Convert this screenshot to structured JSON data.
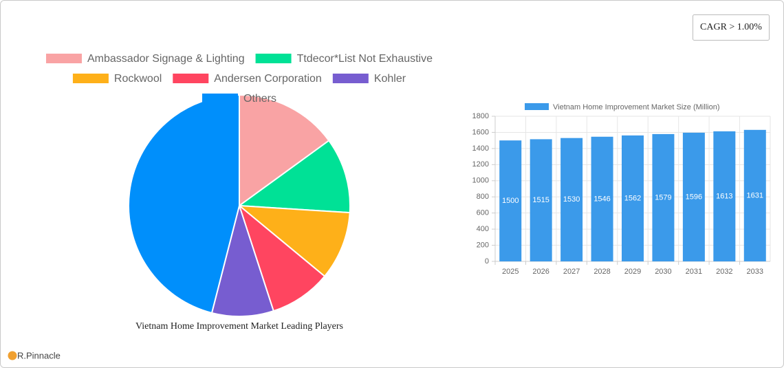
{
  "badge": "CAGR > 1.00%",
  "logo": "R.Pinnacle",
  "chart_data": [
    {
      "type": "pie",
      "title": "Vietnam Home Improvement Market Leading Players",
      "categories": [
        "Ambassador Signage & Lighting",
        "Ttdecor*List Not Exhaustive",
        "Rockwool",
        "Andersen Corporation",
        "Kohler",
        "Others"
      ],
      "values": [
        15,
        11,
        10,
        9,
        9,
        46
      ],
      "colors": [
        "#f9a3a4",
        "#00e196",
        "#feb019",
        "#ff4560",
        "#775dd0",
        "#008ffb"
      ]
    },
    {
      "type": "bar",
      "categories": [
        "2025",
        "2026",
        "2027",
        "2028",
        "2029",
        "2030",
        "2031",
        "2032",
        "2033"
      ],
      "series": [
        {
          "name": "Vietnam Home Improvement Market Size (Million)",
          "color": "#3b9aea",
          "values": [
            1500,
            1515,
            1530,
            1546,
            1562,
            1579,
            1596,
            1613,
            1631
          ]
        }
      ],
      "ylim": [
        0,
        1800
      ],
      "yticks": [
        0,
        200,
        400,
        600,
        800,
        1000,
        1200,
        1400,
        1600,
        1800
      ],
      "grid": true
    }
  ]
}
